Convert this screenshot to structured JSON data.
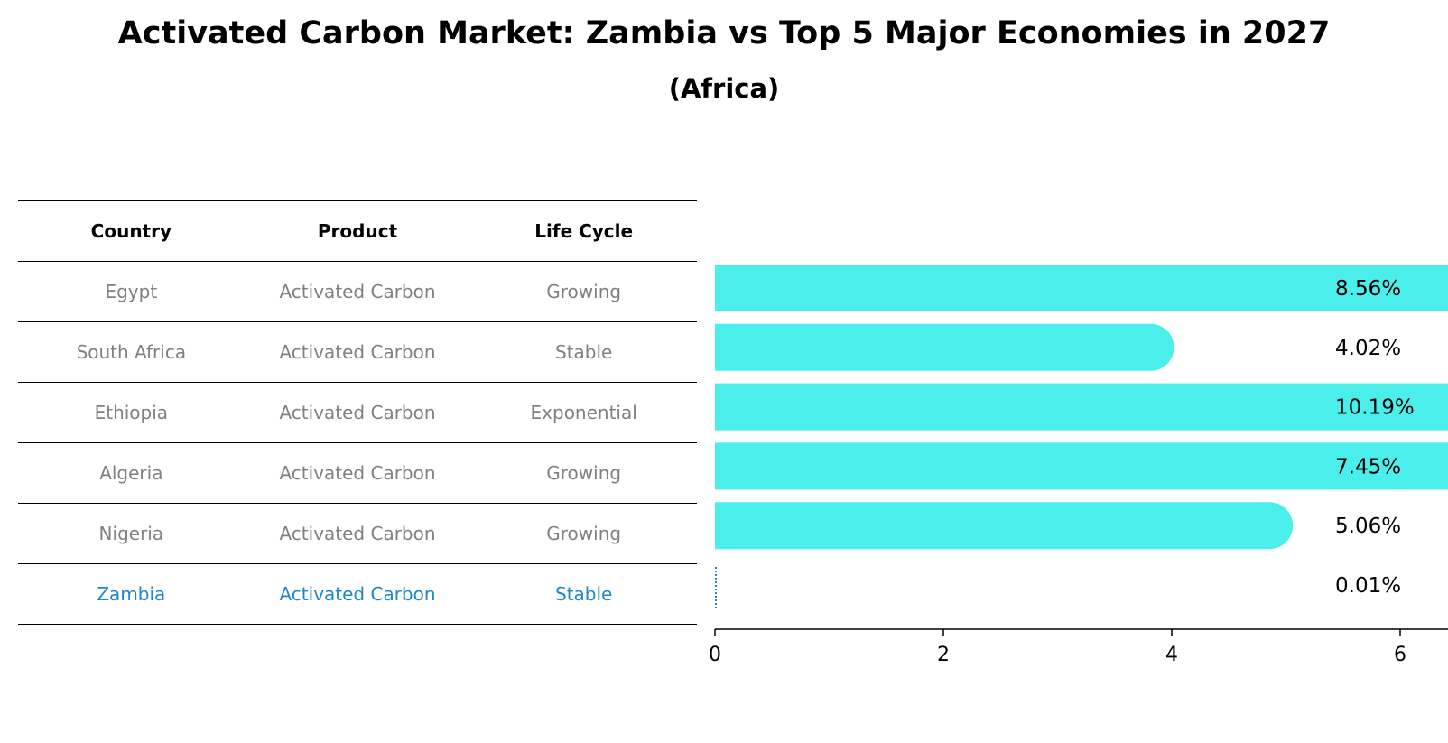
{
  "title": "Activated Carbon Market: Zambia vs Top 5 Major Economies in 2027",
  "subtitle": "(Africa)",
  "table": {
    "headers": [
      "Country",
      "Product",
      "Life Cycle"
    ],
    "rows": [
      {
        "country": "Egypt",
        "product": "Activated Carbon",
        "life_cycle": "Growing"
      },
      {
        "country": "South Africa",
        "product": "Activated Carbon",
        "life_cycle": "Stable"
      },
      {
        "country": "Ethiopia",
        "product": "Activated Carbon",
        "life_cycle": "Exponential"
      },
      {
        "country": "Algeria",
        "product": "Activated Carbon",
        "life_cycle": "Growing"
      },
      {
        "country": "Nigeria",
        "product": "Activated Carbon",
        "life_cycle": "Growing"
      },
      {
        "country": "Zambia",
        "product": "Activated Carbon",
        "life_cycle": "Stable"
      }
    ]
  },
  "chart_data": {
    "type": "bar",
    "orientation": "horizontal",
    "categories": [
      "Egypt",
      "South Africa",
      "Ethiopia",
      "Algeria",
      "Nigeria",
      "Zambia"
    ],
    "values": [
      8.56,
      4.02,
      10.19,
      7.45,
      5.06,
      0.01
    ],
    "value_labels": [
      "8.56%",
      "4.02%",
      "10.19%",
      "7.45%",
      "5.06%",
      "0.01%"
    ],
    "xlim": [
      0,
      10.7
    ],
    "xticks": [
      0,
      2,
      4,
      6,
      8,
      10
    ],
    "grid": false,
    "colors": {
      "bar": "#4aeeea",
      "highlight": "#1f86c8",
      "muted_text": "#808080"
    }
  }
}
